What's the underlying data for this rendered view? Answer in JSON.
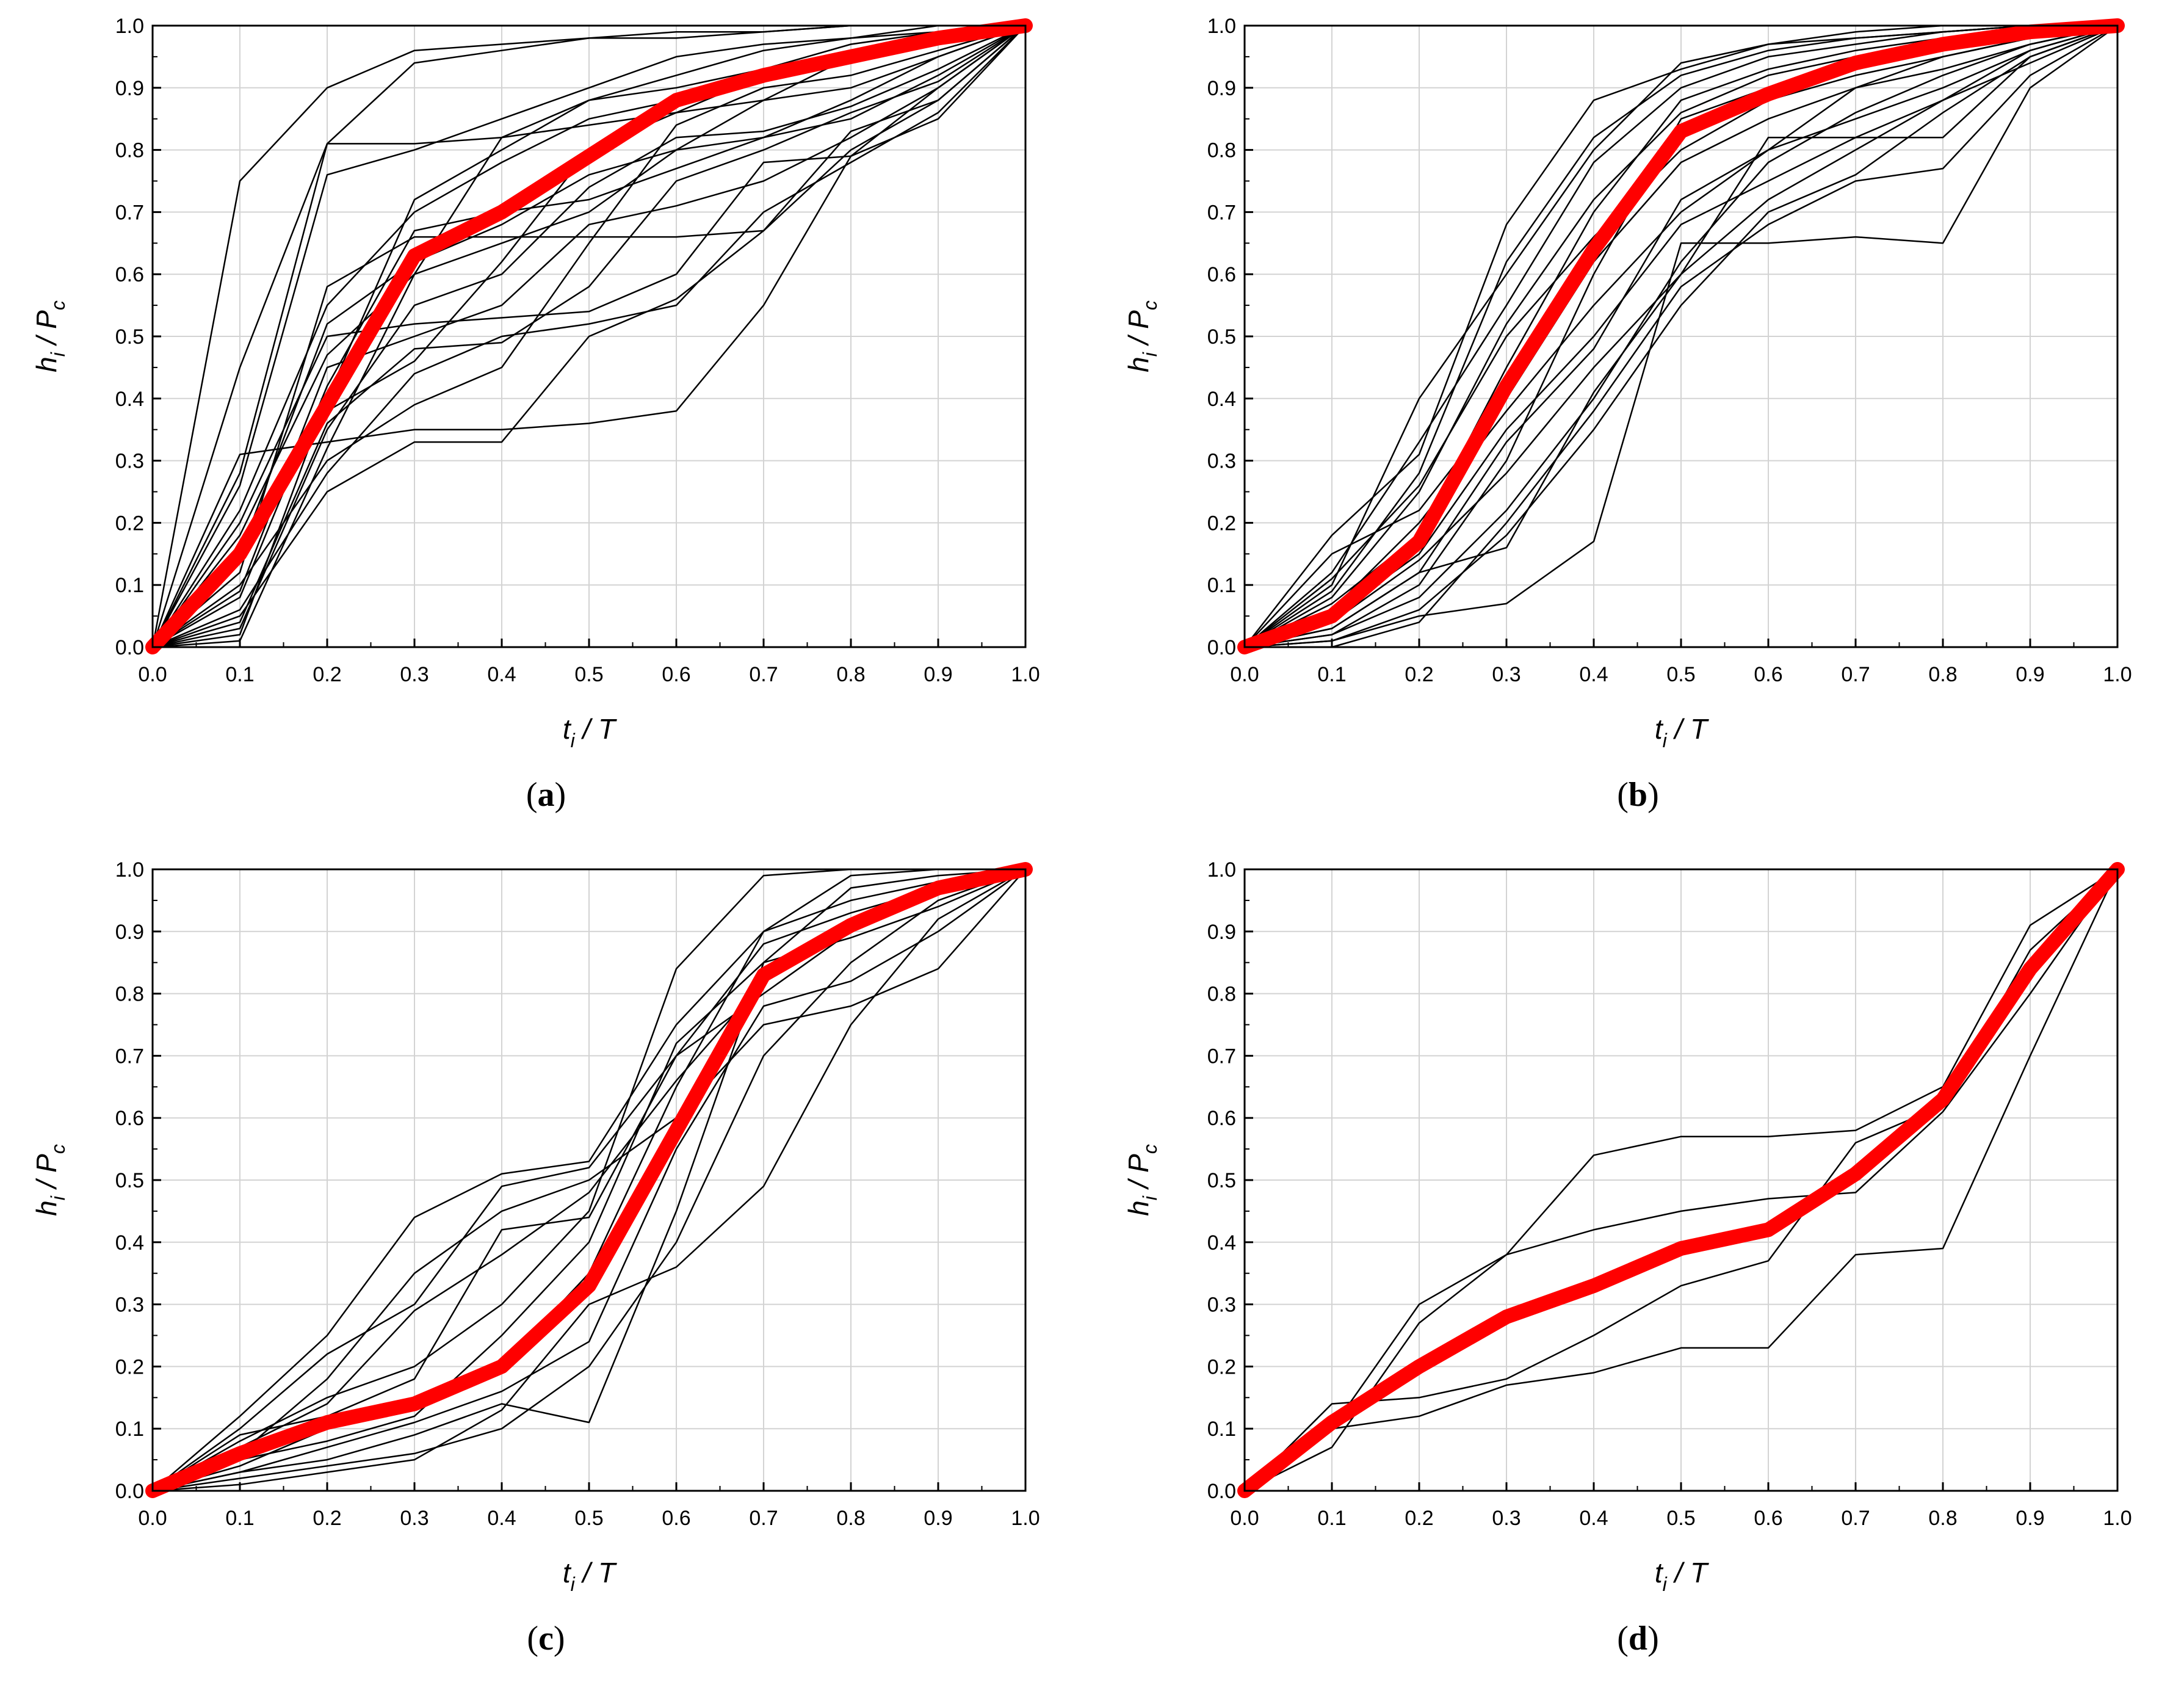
{
  "figure": {
    "panels": [
      {
        "letter": "a",
        "caption_open": "(",
        "caption_close": ")"
      },
      {
        "letter": "b",
        "caption_open": "(",
        "caption_close": ")"
      },
      {
        "letter": "c",
        "caption_open": "(",
        "caption_close": ")"
      },
      {
        "letter": "d",
        "caption_open": "(",
        "caption_close": ")"
      }
    ],
    "colors": {
      "individual": "#000000",
      "mean": "#ff0000",
      "grid": "#d3d3d3"
    }
  },
  "chart_data": [
    {
      "type": "line",
      "panel": "a",
      "xlabel": {
        "main": "t",
        "sub": "i",
        "rest": " / T"
      },
      "ylabel": {
        "main": "h",
        "sub": "i",
        "mid": " / P",
        "sub2": "c"
      },
      "xlim": [
        0,
        1
      ],
      "ylim": [
        0,
        1
      ],
      "xticks": [
        "0.0",
        "0.1",
        "0.2",
        "0.3",
        "0.4",
        "0.5",
        "0.6",
        "0.7",
        "0.8",
        "0.9",
        "1.0"
      ],
      "yticks": [
        "0.0",
        "0.1",
        "0.2",
        "0.3",
        "0.4",
        "0.5",
        "0.6",
        "0.7",
        "0.8",
        "0.9",
        "1.0"
      ],
      "grid": true,
      "x": [
        0,
        0.1,
        0.2,
        0.3,
        0.4,
        0.5,
        0.6,
        0.7,
        0.8,
        0.9,
        1.0
      ],
      "mean_series": {
        "name": "mean",
        "values": [
          0,
          0.15,
          0.39,
          0.63,
          0.7,
          0.79,
          0.88,
          0.92,
          0.95,
          0.98,
          1.0
        ]
      },
      "series": [
        {
          "name": "s1",
          "values": [
            0,
            0.75,
            0.9,
            0.96,
            0.97,
            0.98,
            0.98,
            0.99,
            1.0,
            1.0,
            1.0
          ]
        },
        {
          "name": "s2",
          "values": [
            0,
            0.45,
            0.81,
            0.81,
            0.82,
            0.84,
            0.86,
            0.88,
            0.9,
            0.95,
            1.0
          ]
        },
        {
          "name": "s3",
          "values": [
            0,
            0.31,
            0.33,
            0.35,
            0.35,
            0.36,
            0.38,
            0.55,
            0.79,
            0.85,
            1.0
          ]
        },
        {
          "name": "s4",
          "values": [
            0,
            0.28,
            0.81,
            0.94,
            0.96,
            0.98,
            0.99,
            0.99,
            1.0,
            1.0,
            1.0
          ]
        },
        {
          "name": "s5",
          "values": [
            0,
            0.05,
            0.25,
            0.33,
            0.33,
            0.5,
            0.56,
            0.67,
            0.83,
            0.88,
            1.0
          ]
        },
        {
          "name": "s6",
          "values": [
            0,
            0.2,
            0.5,
            0.52,
            0.53,
            0.54,
            0.6,
            0.78,
            0.79,
            0.9,
            1.0
          ]
        },
        {
          "name": "s7",
          "values": [
            0,
            0.1,
            0.3,
            0.39,
            0.45,
            0.65,
            0.84,
            0.9,
            0.92,
            0.96,
            1.0
          ]
        },
        {
          "name": "s8",
          "values": [
            0,
            0.12,
            0.58,
            0.66,
            0.66,
            0.66,
            0.66,
            0.67,
            0.8,
            0.88,
            1.0
          ]
        },
        {
          "name": "s9",
          "values": [
            0,
            0.03,
            0.35,
            0.55,
            0.6,
            0.74,
            0.82,
            0.83,
            0.87,
            0.93,
            1.0
          ]
        },
        {
          "name": "s10",
          "values": [
            0,
            0.08,
            0.42,
            0.67,
            0.7,
            0.72,
            0.77,
            0.82,
            0.88,
            0.95,
            1.0
          ]
        },
        {
          "name": "s11",
          "values": [
            0,
            0.02,
            0.4,
            0.72,
            0.8,
            0.88,
            0.9,
            0.93,
            0.97,
            0.99,
            1.0
          ]
        },
        {
          "name": "s12",
          "values": [
            0,
            0.18,
            0.47,
            0.6,
            0.82,
            0.88,
            0.92,
            0.96,
            0.98,
            1.0,
            1.0
          ]
        },
        {
          "name": "s13",
          "values": [
            0,
            0.06,
            0.28,
            0.44,
            0.5,
            0.52,
            0.55,
            0.7,
            0.78,
            0.86,
            1.0
          ]
        },
        {
          "name": "s14",
          "values": [
            0,
            0.15,
            0.52,
            0.62,
            0.68,
            0.76,
            0.8,
            0.82,
            0.85,
            0.92,
            1.0
          ]
        },
        {
          "name": "s15",
          "values": [
            0,
            0.04,
            0.36,
            0.48,
            0.49,
            0.58,
            0.75,
            0.8,
            0.86,
            0.91,
            1.0
          ]
        },
        {
          "name": "s16",
          "values": [
            0,
            0.22,
            0.55,
            0.7,
            0.78,
            0.85,
            0.88,
            0.91,
            0.94,
            0.97,
            1.0
          ]
        },
        {
          "name": "s17",
          "values": [
            0,
            0.01,
            0.32,
            0.6,
            0.65,
            0.7,
            0.8,
            0.88,
            0.95,
            0.99,
            1.0
          ]
        },
        {
          "name": "s18",
          "values": [
            0,
            0.26,
            0.76,
            0.8,
            0.85,
            0.9,
            0.95,
            0.97,
            0.98,
            0.99,
            1.0
          ]
        },
        {
          "name": "s19",
          "values": [
            0,
            0.09,
            0.45,
            0.5,
            0.55,
            0.68,
            0.71,
            0.75,
            0.82,
            0.9,
            1.0
          ]
        },
        {
          "name": "s20",
          "values": [
            0,
            0.14,
            0.38,
            0.46,
            0.62,
            0.8,
            0.86,
            0.92,
            0.96,
            0.98,
            1.0
          ]
        }
      ]
    },
    {
      "type": "line",
      "panel": "b",
      "xlabel": {
        "main": "t",
        "sub": "i",
        "rest": " / T"
      },
      "ylabel": {
        "main": "h",
        "sub": "i",
        "mid": " / P",
        "sub2": "c"
      },
      "xlim": [
        0,
        1
      ],
      "ylim": [
        0,
        1
      ],
      "xticks": [
        "0.0",
        "0.1",
        "0.2",
        "0.3",
        "0.4",
        "0.5",
        "0.6",
        "0.7",
        "0.8",
        "0.9",
        "1.0"
      ],
      "yticks": [
        "0.0",
        "0.1",
        "0.2",
        "0.3",
        "0.4",
        "0.5",
        "0.6",
        "0.7",
        "0.8",
        "0.9",
        "1.0"
      ],
      "grid": true,
      "x": [
        0,
        0.1,
        0.2,
        0.3,
        0.4,
        0.5,
        0.6,
        0.7,
        0.8,
        0.9,
        1.0
      ],
      "mean_series": {
        "name": "mean",
        "values": [
          0,
          0.05,
          0.17,
          0.42,
          0.64,
          0.83,
          0.89,
          0.94,
          0.97,
          0.99,
          1.0
        ]
      },
      "series": [
        {
          "name": "s1",
          "values": [
            0,
            0.18,
            0.31,
            0.68,
            0.88,
            0.93,
            0.97,
            0.99,
            1.0,
            1.0,
            1.0
          ]
        },
        {
          "name": "s2",
          "values": [
            0,
            0.01,
            0.05,
            0.07,
            0.17,
            0.65,
            0.65,
            0.66,
            0.65,
            0.9,
            1.0
          ]
        },
        {
          "name": "s3",
          "values": [
            0,
            0.03,
            0.12,
            0.16,
            0.41,
            0.6,
            0.82,
            0.82,
            0.82,
            0.95,
            1.0
          ]
        },
        {
          "name": "s4",
          "values": [
            0,
            0.1,
            0.4,
            0.6,
            0.8,
            0.94,
            0.97,
            0.98,
            0.99,
            1.0,
            1.0
          ]
        },
        {
          "name": "s5",
          "values": [
            0,
            0.06,
            0.2,
            0.38,
            0.55,
            0.7,
            0.8,
            0.9,
            0.95,
            0.98,
            1.0
          ]
        },
        {
          "name": "s6",
          "values": [
            0,
            0.02,
            0.1,
            0.3,
            0.6,
            0.85,
            0.9,
            0.94,
            0.96,
            0.99,
            1.0
          ]
        },
        {
          "name": "s7",
          "values": [
            0,
            0.08,
            0.25,
            0.52,
            0.72,
            0.86,
            0.92,
            0.95,
            0.97,
            0.99,
            1.0
          ]
        },
        {
          "name": "s8",
          "values": [
            0,
            0.04,
            0.14,
            0.28,
            0.45,
            0.6,
            0.72,
            0.8,
            0.88,
            0.96,
            1.0
          ]
        },
        {
          "name": "s9",
          "values": [
            0,
            0.12,
            0.33,
            0.55,
            0.78,
            0.9,
            0.95,
            0.97,
            0.99,
            1.0,
            1.0
          ]
        },
        {
          "name": "s10",
          "values": [
            0,
            0.02,
            0.08,
            0.22,
            0.4,
            0.62,
            0.78,
            0.86,
            0.92,
            0.97,
            1.0
          ]
        },
        {
          "name": "s11",
          "values": [
            0,
            0.07,
            0.18,
            0.45,
            0.7,
            0.88,
            0.93,
            0.96,
            0.98,
            0.99,
            1.0
          ]
        },
        {
          "name": "s12",
          "values": [
            0,
            0.05,
            0.15,
            0.35,
            0.5,
            0.68,
            0.75,
            0.82,
            0.88,
            0.94,
            1.0
          ]
        },
        {
          "name": "s13",
          "values": [
            0,
            0.09,
            0.28,
            0.62,
            0.82,
            0.92,
            0.96,
            0.98,
            0.99,
            1.0,
            1.0
          ]
        },
        {
          "name": "s14",
          "values": [
            0,
            0.01,
            0.06,
            0.18,
            0.35,
            0.55,
            0.7,
            0.76,
            0.86,
            0.95,
            1.0
          ]
        },
        {
          "name": "s15",
          "values": [
            0,
            0.15,
            0.22,
            0.4,
            0.62,
            0.78,
            0.85,
            0.9,
            0.93,
            0.97,
            1.0
          ]
        },
        {
          "name": "s16",
          "values": [
            0,
            0.03,
            0.12,
            0.33,
            0.48,
            0.72,
            0.8,
            0.85,
            0.9,
            0.96,
            1.0
          ]
        },
        {
          "name": "s17",
          "values": [
            0,
            0.11,
            0.26,
            0.5,
            0.66,
            0.8,
            0.88,
            0.92,
            0.95,
            0.98,
            1.0
          ]
        },
        {
          "name": "s18",
          "values": [
            0,
            0.0,
            0.04,
            0.2,
            0.38,
            0.58,
            0.68,
            0.75,
            0.77,
            0.92,
            1.0
          ]
        }
      ]
    },
    {
      "type": "line",
      "panel": "c",
      "xlabel": {
        "main": "t",
        "sub": "i",
        "rest": " / T"
      },
      "ylabel": {
        "main": "h",
        "sub": "i",
        "mid": " / P",
        "sub2": "c"
      },
      "xlim": [
        0,
        1
      ],
      "ylim": [
        0,
        1
      ],
      "xticks": [
        "0.0",
        "0.1",
        "0.2",
        "0.3",
        "0.4",
        "0.5",
        "0.6",
        "0.7",
        "0.8",
        "0.9",
        "1.0"
      ],
      "yticks": [
        "0.0",
        "0.1",
        "0.2",
        "0.3",
        "0.4",
        "0.5",
        "0.6",
        "0.7",
        "0.8",
        "0.9",
        "1.0"
      ],
      "grid": true,
      "x": [
        0,
        0.1,
        0.2,
        0.3,
        0.4,
        0.5,
        0.6,
        0.7,
        0.8,
        0.9,
        1.0
      ],
      "mean_series": {
        "name": "mean",
        "values": [
          0,
          0.06,
          0.11,
          0.14,
          0.2,
          0.33,
          0.58,
          0.83,
          0.91,
          0.97,
          1.0
        ]
      },
      "series": [
        {
          "name": "s1",
          "values": [
            0,
            0.12,
            0.25,
            0.44,
            0.51,
            0.53,
            0.75,
            0.9,
            0.99,
            1.0,
            1.0
          ]
        },
        {
          "name": "s2",
          "values": [
            0,
            0.03,
            0.05,
            0.09,
            0.14,
            0.11,
            0.45,
            0.85,
            0.97,
            0.99,
            1.0
          ]
        },
        {
          "name": "s3",
          "values": [
            0,
            0.1,
            0.22,
            0.3,
            0.49,
            0.52,
            0.7,
            0.8,
            0.9,
            0.96,
            1.0
          ]
        },
        {
          "name": "s4",
          "values": [
            0,
            0.02,
            0.04,
            0.06,
            0.1,
            0.2,
            0.4,
            0.7,
            0.85,
            0.95,
            1.0
          ]
        },
        {
          "name": "s5",
          "values": [
            0,
            0.08,
            0.15,
            0.2,
            0.3,
            0.45,
            0.84,
            0.99,
            1.0,
            1.0,
            1.0
          ]
        },
        {
          "name": "s6",
          "values": [
            0,
            0.04,
            0.1,
            0.14,
            0.2,
            0.35,
            0.65,
            0.9,
            0.95,
            0.98,
            1.0
          ]
        },
        {
          "name": "s7",
          "values": [
            0,
            0.06,
            0.18,
            0.35,
            0.45,
            0.5,
            0.6,
            0.75,
            0.78,
            0.84,
            1.0
          ]
        },
        {
          "name": "s8",
          "values": [
            0,
            0.01,
            0.03,
            0.05,
            0.13,
            0.3,
            0.36,
            0.49,
            0.75,
            0.92,
            1.0
          ]
        },
        {
          "name": "s9",
          "values": [
            0,
            0.09,
            0.12,
            0.18,
            0.42,
            0.44,
            0.7,
            0.88,
            0.93,
            0.97,
            1.0
          ]
        },
        {
          "name": "s10",
          "values": [
            0,
            0.05,
            0.08,
            0.12,
            0.25,
            0.4,
            0.72,
            0.85,
            0.89,
            0.94,
            1.0
          ]
        },
        {
          "name": "s11",
          "values": [
            0,
            0.03,
            0.07,
            0.11,
            0.16,
            0.24,
            0.55,
            0.78,
            0.82,
            0.9,
            1.0
          ]
        },
        {
          "name": "s12",
          "values": [
            0,
            0.07,
            0.14,
            0.29,
            0.38,
            0.48,
            0.66,
            0.82,
            0.9,
            0.96,
            1.0
          ]
        }
      ]
    },
    {
      "type": "line",
      "panel": "d",
      "xlabel": {
        "main": "t",
        "sub": "i",
        "rest": " / T"
      },
      "ylabel": {
        "main": "h",
        "sub": "i",
        "mid": " / P",
        "sub2": "c"
      },
      "xlim": [
        0,
        1
      ],
      "ylim": [
        0,
        1
      ],
      "xticks": [
        "0.0",
        "0.1",
        "0.2",
        "0.3",
        "0.4",
        "0.5",
        "0.6",
        "0.7",
        "0.8",
        "0.9",
        "1.0"
      ],
      "yticks": [
        "0.0",
        "0.1",
        "0.2",
        "0.3",
        "0.4",
        "0.5",
        "0.6",
        "0.7",
        "0.8",
        "0.9",
        "1.0"
      ],
      "grid": true,
      "x": [
        0,
        0.1,
        0.2,
        0.3,
        0.4,
        0.5,
        0.6,
        0.7,
        0.8,
        0.9,
        1.0
      ],
      "mean_series": {
        "name": "mean",
        "values": [
          0,
          0.11,
          0.2,
          0.28,
          0.33,
          0.39,
          0.42,
          0.51,
          0.63,
          0.84,
          1.0
        ]
      },
      "series": [
        {
          "name": "s1",
          "values": [
            0,
            0.1,
            0.3,
            0.38,
            0.54,
            0.57,
            0.57,
            0.58,
            0.65,
            0.91,
            1.0
          ]
        },
        {
          "name": "s2",
          "values": [
            0,
            0.1,
            0.12,
            0.17,
            0.19,
            0.23,
            0.23,
            0.38,
            0.39,
            0.7,
            1.0
          ]
        },
        {
          "name": "s3",
          "values": [
            0,
            0.07,
            0.27,
            0.38,
            0.42,
            0.45,
            0.47,
            0.48,
            0.61,
            0.8,
            1.0
          ]
        },
        {
          "name": "s4",
          "values": [
            0,
            0.14,
            0.15,
            0.18,
            0.25,
            0.33,
            0.37,
            0.56,
            0.62,
            0.87,
            1.0
          ]
        }
      ]
    }
  ]
}
